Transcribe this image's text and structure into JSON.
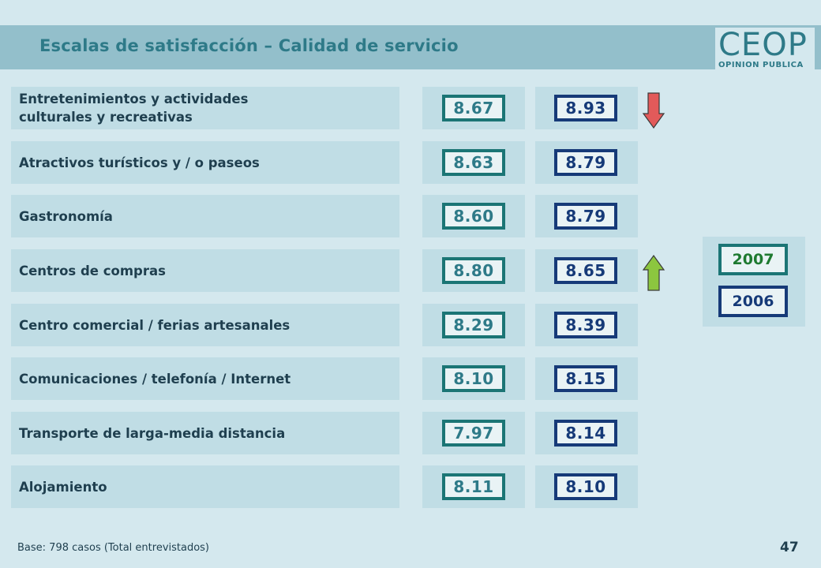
{
  "header": {
    "title": "Escalas de satisfacción – Calidad de servicio",
    "logo_main": "CEOP",
    "logo_sub": "OPINION PUBLICA"
  },
  "rows": [
    {
      "label": "Entretenimientos  y actividades\nculturales  y recreativas",
      "v2007": "8.67",
      "v2006": "8.93",
      "trend": "down"
    },
    {
      "label": "Atractivos turísticos y / o paseos",
      "v2007": "8.63",
      "v2006": "8.79",
      "trend": ""
    },
    {
      "label": "Gastronomía",
      "v2007": "8.60",
      "v2006": "8.79",
      "trend": ""
    },
    {
      "label": "Centros de compras",
      "v2007": "8.80",
      "v2006": "8.65",
      "trend": "up"
    },
    {
      "label": "Centro comercial / ferias artesanales",
      "v2007": "8.29",
      "v2006": "8.39",
      "trend": ""
    },
    {
      "label": "Comunicaciones / telefonía / Internet",
      "v2007": "8.10",
      "v2006": "8.15",
      "trend": ""
    },
    {
      "label": "Transporte de larga-media distancia",
      "v2007": "7.97",
      "v2006": "8.14",
      "trend": ""
    },
    {
      "label": "Alojamiento",
      "v2007": "8.11",
      "v2006": "8.10",
      "trend": ""
    }
  ],
  "legend": {
    "y2007": "2007",
    "y2006": "2006"
  },
  "colors": {
    "up_arrow": "#8cc63f",
    "down_arrow": "#e25a5a",
    "accent": "#2e7a88"
  },
  "footer": {
    "note": "Base: 798 casos (Total entrevistados)",
    "page": "47"
  }
}
